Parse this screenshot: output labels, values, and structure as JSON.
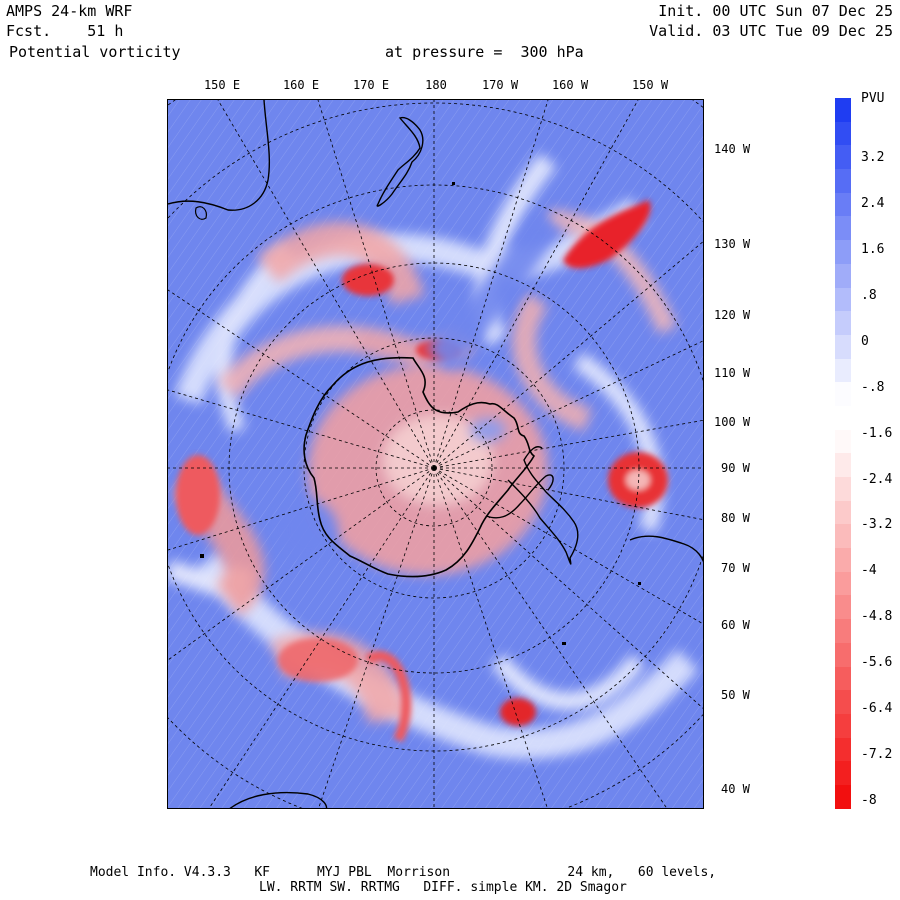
{
  "header": {
    "model": "AMPS 24-km WRF",
    "forecast": "Fcst.    51 h",
    "field": "Potential vorticity",
    "init": "Init. 00 UTC Sun 07 Dec 25",
    "valid": "Valid. 03 UTC Tue 09 Dec 25",
    "level": "at pressure =  300 hPa"
  },
  "lon_labels": [
    "150 E",
    "160 E",
    "170 E",
    "180",
    "170 W",
    "160 W",
    "150 W"
  ],
  "lat_labels": [
    "140 W",
    "130 W",
    "120 W",
    "110 W",
    "100 W",
    "90 W",
    "80 W",
    "70 W",
    "60 W",
    "50 W",
    "40 W"
  ],
  "colorbar": {
    "unit": "PVU",
    "labels": [
      "3.2",
      "2.4",
      "1.6",
      ".8",
      "0",
      "-.8",
      "-1.6",
      "-2.4",
      "-3.2",
      "-4",
      "-4.8",
      "-5.6",
      "-6.4",
      "-7.2",
      "-8"
    ],
    "high_color": "#1f3df2",
    "mid_color": "#ffffff",
    "low_color": "#f20f0f"
  },
  "footer": {
    "line1": "Model Info. V4.3.3   KF      MYJ PBL  Morrison               24 km,   60 levels,",
    "line2": "LW. RRTM SW. RRTMG   DIFF. simple KM. 2D Smagor"
  },
  "colors": {
    "background_pv": "#6f86ee",
    "high_pv": "#e8242a"
  }
}
